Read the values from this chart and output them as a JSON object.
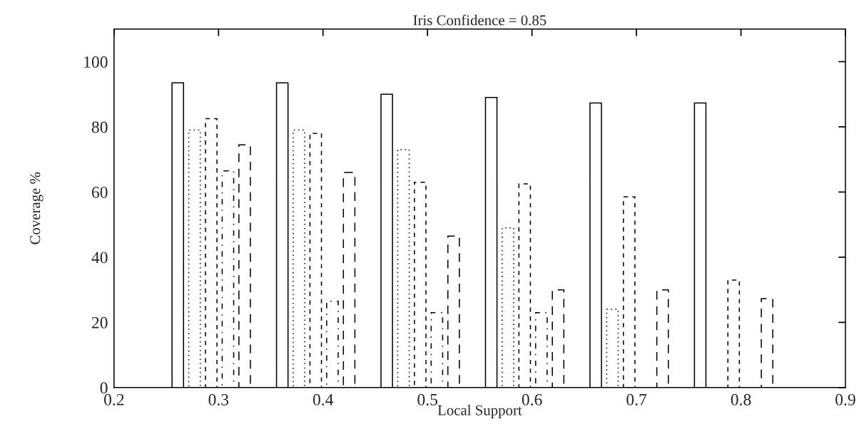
{
  "chart_data": {
    "type": "bar",
    "title": "Iris Confidence = 0.85",
    "xlabel": "Local Support",
    "ylabel": "Coverage %",
    "xlim": [
      0.2,
      0.9
    ],
    "xticks": [
      0.2,
      0.3,
      0.4,
      0.5,
      0.6,
      0.7,
      0.8,
      0.9
    ],
    "ylim": [
      0,
      110
    ],
    "yticks": [
      0,
      20,
      40,
      60,
      80,
      100
    ],
    "series": [
      {
        "color": "#000000",
        "line_style": "solid",
        "x": [
          0.261,
          0.361,
          0.461,
          0.561,
          0.661,
          0.761
        ],
        "values": [
          93.5,
          93.5,
          90,
          89,
          87.3,
          87.3
        ]
      },
      {
        "color": "#000000",
        "line_style": "dotted",
        "x": [
          0.277,
          0.377,
          0.477,
          0.577,
          0.677,
          0.777
        ],
        "values": [
          79,
          79,
          73,
          49,
          24,
          0
        ]
      },
      {
        "color": "#000000",
        "line_style": "dashed",
        "x": [
          0.293,
          0.393,
          0.493,
          0.593,
          0.693,
          0.793
        ],
        "values": [
          82.5,
          78,
          63,
          62.5,
          58.5,
          33
        ]
      },
      {
        "color": "#000000",
        "line_style": "dashdot",
        "x": [
          0.309,
          0.409,
          0.509,
          0.609,
          0.709,
          0.809
        ],
        "values": [
          66.5,
          26.5,
          23,
          23,
          0,
          0
        ]
      },
      {
        "color": "#000000",
        "line_style": "longdash",
        "x": [
          0.325,
          0.425,
          0.525,
          0.625,
          0.725,
          0.825
        ],
        "values": [
          74.5,
          66,
          46.5,
          30,
          30,
          27.3
        ]
      }
    ],
    "grid": false,
    "legend": false
  }
}
